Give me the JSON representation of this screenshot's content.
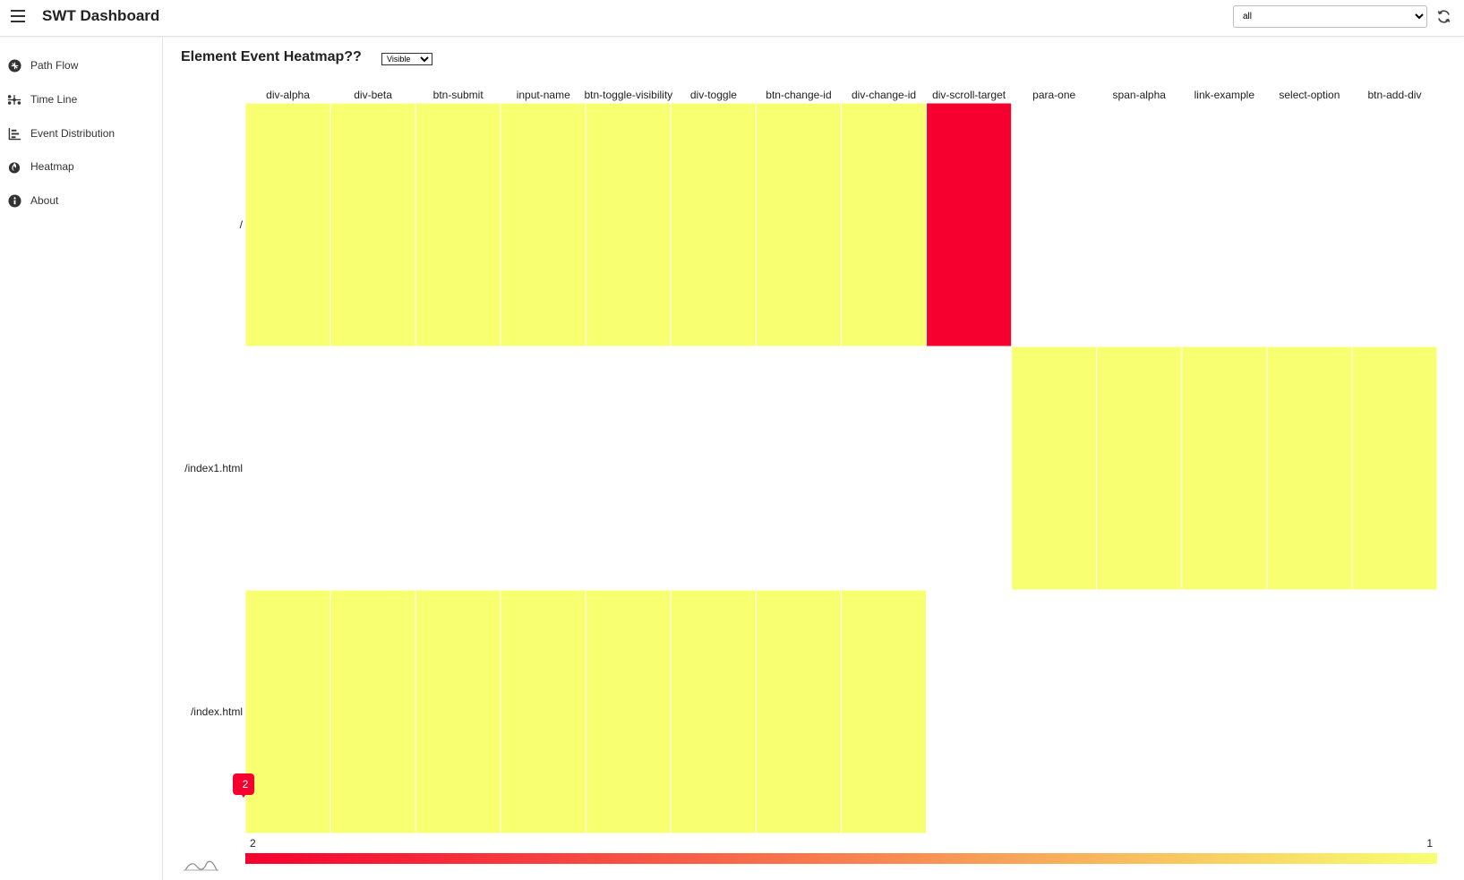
{
  "header": {
    "title": "SWT Dashboard",
    "filter_value": "all",
    "filter_options": [
      "all"
    ],
    "icons": [
      "hamburger-icon",
      "refresh-icon"
    ]
  },
  "sidebar": {
    "items": [
      {
        "label": "Path Flow",
        "icon": "path-flow-icon"
      },
      {
        "label": "Time Line",
        "icon": "timeline-icon"
      },
      {
        "label": "Event Distribution",
        "icon": "bar-chart-icon"
      },
      {
        "label": "Heatmap",
        "icon": "fire-icon"
      },
      {
        "label": "About",
        "icon": "info-icon"
      }
    ]
  },
  "main": {
    "title": "Element Event Heatmap??",
    "mode_value": "Visible",
    "mode_options": [
      "Visible"
    ]
  },
  "colors": {
    "high": "#f6002f",
    "low": "#f8ff70"
  },
  "chart_data": {
    "type": "heatmap",
    "x": [
      "div-alpha",
      "div-beta",
      "btn-submit",
      "input-name",
      "btn-toggle-visibility",
      "div-toggle",
      "btn-change-id",
      "div-change-id",
      "div-scroll-target",
      "para-one",
      "span-alpha",
      "link-example",
      "select-option",
      "btn-add-div"
    ],
    "y": [
      "/",
      "/index1.html",
      "/index.html"
    ],
    "values": [
      [
        1,
        1,
        1,
        1,
        1,
        1,
        1,
        1,
        2,
        null,
        null,
        null,
        null,
        null
      ],
      [
        null,
        null,
        null,
        null,
        null,
        null,
        null,
        null,
        null,
        1,
        1,
        1,
        1,
        1
      ],
      [
        1,
        1,
        1,
        1,
        1,
        1,
        1,
        1,
        null,
        null,
        null,
        null,
        null,
        null
      ]
    ],
    "visual_map": {
      "min": 1,
      "max": 2,
      "min_label": "1",
      "max_label": "2",
      "handle_value": "2"
    },
    "legend": "bottom"
  }
}
